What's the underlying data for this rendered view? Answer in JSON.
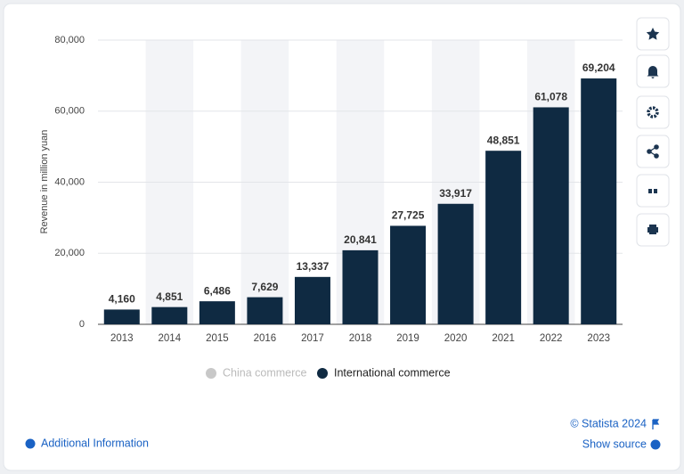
{
  "chart_data": {
    "type": "bar",
    "y_label": "Revenue in million yuan",
    "categories": [
      "2013",
      "2014",
      "2015",
      "2016",
      "2017",
      "2018",
      "2019",
      "2020",
      "2021",
      "2022",
      "2023"
    ],
    "series": [
      {
        "name": "International commerce",
        "color": "#0f2a42",
        "values": [
          4160,
          4851,
          6486,
          7629,
          13337,
          20841,
          27725,
          33917,
          48851,
          61078,
          69204
        ],
        "value_labels": [
          "4,160",
          "4,851",
          "6,486",
          "7,629",
          "13,337",
          "20,841",
          "27,725",
          "33,917",
          "48,851",
          "61,078",
          "69,204"
        ]
      }
    ],
    "hidden_series": [
      {
        "name": "China commerce",
        "color": "#c8c8c8"
      }
    ],
    "ylim": [
      0,
      80000
    ],
    "yticks": [
      0,
      {
        "value": 20000,
        "label": "20,000"
      },
      {
        "value": 40000,
        "label": "40,000"
      },
      {
        "value": 60000,
        "label": "60,000"
      },
      {
        "value": 80000,
        "label": "80,000"
      }
    ],
    "grid": true,
    "band_shading": "#f3f4f7"
  },
  "footer": {
    "copyright": "© Statista 2024",
    "additional_info": "Additional Information",
    "show_source": "Show source"
  }
}
